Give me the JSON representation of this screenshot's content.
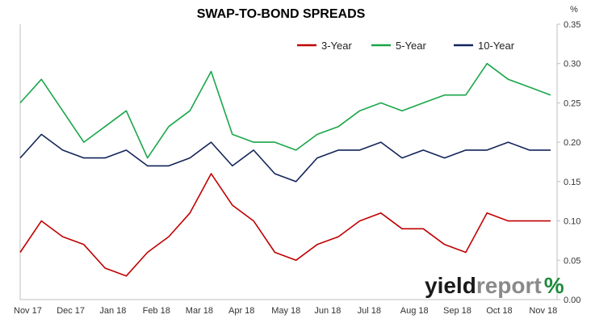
{
  "chart_data": {
    "type": "line",
    "title": "SWAP-TO-BOND SPREADS",
    "ylabel": "%",
    "ylim": [
      0,
      0.35
    ],
    "y_ticks": [
      "0.00",
      "0.05",
      "0.10",
      "0.15",
      "0.20",
      "0.25",
      "0.30",
      "0.35"
    ],
    "x_ticks": [
      "Nov 17",
      "Dec 17",
      "Jan 18",
      "Feb 18",
      "Mar 18",
      "Apr 18",
      "May 18",
      "Jun 18",
      "Jul 18",
      "Aug 18",
      "Sep 18",
      "Oct 18",
      "Nov 18"
    ],
    "grid": false,
    "legend_position": "top-right",
    "x": [
      "Nov 17",
      "Nov 17",
      "Dec 17",
      "Dec 17",
      "Jan 18",
      "Jan 18",
      "Feb 18",
      "Feb 18",
      "Mar 18",
      "Mar 18",
      "Apr 18",
      "Apr 18",
      "May 18",
      "May 18",
      "Jun 18",
      "Jun 18",
      "Jul 18",
      "Jul 18",
      "Aug 18",
      "Aug 18",
      "Sep 18",
      "Sep 18",
      "Oct 18",
      "Oct 18",
      "Nov 18",
      "Nov 18"
    ],
    "series": [
      {
        "name": "3-Year",
        "color": "#c00000",
        "values": [
          0.06,
          0.1,
          0.08,
          0.07,
          0.04,
          0.03,
          0.06,
          0.08,
          0.11,
          0.16,
          0.12,
          0.1,
          0.06,
          0.05,
          0.07,
          0.08,
          0.1,
          0.11,
          0.09,
          0.09,
          0.07,
          0.06,
          0.11,
          0.1,
          0.1,
          0.1
        ]
      },
      {
        "name": "5-Year",
        "color": "#1aa64a",
        "values": [
          0.25,
          0.28,
          0.24,
          0.2,
          0.22,
          0.24,
          0.18,
          0.22,
          0.24,
          0.29,
          0.21,
          0.2,
          0.2,
          0.19,
          0.21,
          0.22,
          0.24,
          0.25,
          0.24,
          0.25,
          0.26,
          0.26,
          0.3,
          0.28,
          0.27,
          0.26
        ]
      },
      {
        "name": "10-Year",
        "color": "#12245a",
        "values": [
          0.18,
          0.21,
          0.19,
          0.18,
          0.18,
          0.19,
          0.17,
          0.17,
          0.18,
          0.2,
          0.17,
          0.19,
          0.16,
          0.15,
          0.18,
          0.19,
          0.19,
          0.2,
          0.18,
          0.19,
          0.18,
          0.19,
          0.19,
          0.2,
          0.19,
          0.19
        ]
      }
    ]
  },
  "brand": {
    "part1": "yield",
    "part2": "report",
    "symbol": "%"
  }
}
